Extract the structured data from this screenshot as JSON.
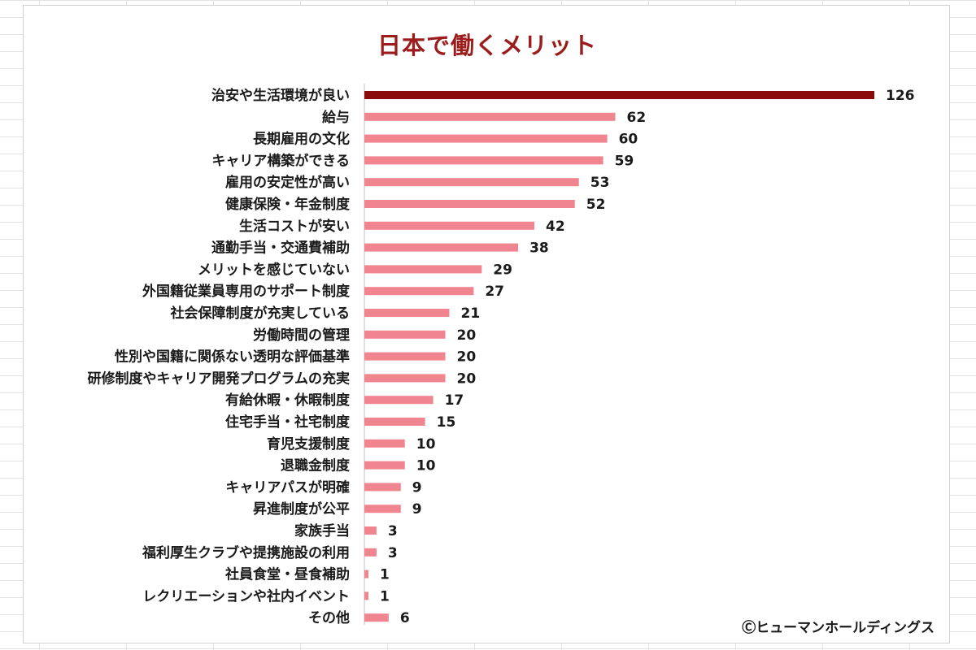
{
  "chart_data": {
    "type": "bar",
    "orientation": "horizontal",
    "title": "日本で働くメリット",
    "categories": [
      "治安や生活環境が良い",
      "給与",
      "長期雇用の文化",
      "キャリア構築ができる",
      "雇用の安定性が高い",
      "健康保険・年金制度",
      "生活コストが安い",
      "通勤手当・交通費補助",
      "メリットを感じていない",
      "外国籍従業員専用のサポート制度",
      "社会保障制度が充実している",
      "労働時間の管理",
      "性別や国籍に関係ない透明な評価基準",
      "研修制度やキャリア開発プログラムの充実",
      "有給休暇・休暇制度",
      "住宅手当・社宅制度",
      "育児支援制度",
      "退職金制度",
      "キャリアパスが明確",
      "昇進制度が公平",
      "家族手当",
      "福利厚生クラブや提携施設の利用",
      "社員食堂・昼食補助",
      "レクリエーションや社内イベント",
      "その他"
    ],
    "values": [
      126,
      62,
      60,
      59,
      53,
      52,
      42,
      38,
      29,
      27,
      21,
      20,
      20,
      20,
      17,
      15,
      10,
      10,
      9,
      9,
      3,
      3,
      1,
      1,
      6
    ],
    "xlim": [
      0,
      126
    ],
    "grid": false,
    "legend": "none",
    "highlight_index": 0,
    "colors": {
      "highlight": "#8b0a0a",
      "bar": "#f0848f"
    }
  },
  "credit": "Ⓒヒューマンホールディングス"
}
